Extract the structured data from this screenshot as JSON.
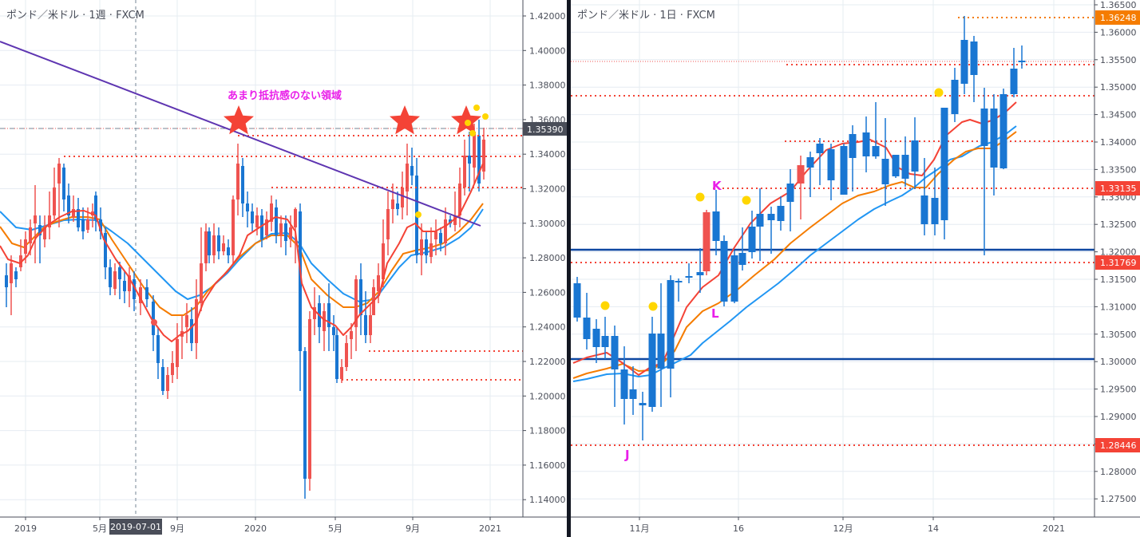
{
  "left": {
    "title": "ポンド／米ドル · 1週 · FXCM",
    "annotation": "あまり抵抗感のない領域",
    "price_axis": [
      "1.42000",
      "1.40000",
      "1.38000",
      "1.36000",
      "1.34000",
      "1.32000",
      "1.30000",
      "1.28000",
      "1.26000",
      "1.24000",
      "1.22000",
      "1.20000",
      "1.18000",
      "1.16000",
      "1.14000"
    ],
    "current_price": "1.35390",
    "time_axis": [
      {
        "label": "2019",
        "x": 32
      },
      {
        "label": "5月",
        "x": 125
      },
      {
        "label": "9月",
        "x": 222
      },
      {
        "label": "2020",
        "x": 320
      },
      {
        "label": "5月",
        "x": 420
      },
      {
        "label": "9月",
        "x": 517
      },
      {
        "label": "2021",
        "x": 614
      }
    ],
    "crosshair_date": "2019-07-01"
  },
  "right": {
    "title": "ポンド／米ドル · 1日 · FXCM",
    "price_axis": [
      "1.36500",
      "1.36000",
      "1.35500",
      "1.35000",
      "1.34500",
      "1.34000",
      "1.33500",
      "1.33000",
      "1.32500",
      "1.32000",
      "1.31500",
      "1.31000",
      "1.30500",
      "1.30000",
      "1.29500",
      "1.29000",
      "1.28500",
      "1.28000",
      "1.27500"
    ],
    "price_labels": [
      {
        "value": "1.36248",
        "color": "#f57c00"
      },
      {
        "value": "1.33135",
        "color": "#f44336"
      },
      {
        "value": "1.31769",
        "color": "#f44336"
      },
      {
        "value": "1.28446",
        "color": "#f44336"
      }
    ],
    "time_axis": [
      {
        "label": "11月",
        "x": 86
      },
      {
        "label": "16",
        "x": 210
      },
      {
        "label": "12月",
        "x": 341
      },
      {
        "label": "14",
        "x": 454
      },
      {
        "label": "2021",
        "x": 605
      }
    ],
    "point_labels": [
      "J",
      "K",
      "L"
    ]
  },
  "colors": {
    "up": "#ef5350",
    "down": "#1976d2",
    "ma_fast": "#f44336",
    "ma_mid": "#f57c00",
    "ma_slow": "#2196f3",
    "trendline": "#5e35b1",
    "level": "#f44336",
    "annotation": "#e91ee9",
    "star": "#f44336",
    "marker": "#ffd600",
    "hline": "#0d47a1"
  },
  "chart_data": [
    {
      "type": "candlestick",
      "title": "ポンド／米ドル · 1週 · FXCM",
      "xlabel": "",
      "ylabel": "",
      "x_ticks": [
        "2019",
        "5月",
        "9月",
        "2020",
        "5月",
        "9月",
        "2021"
      ],
      "ylim": [
        1.13,
        1.43
      ],
      "last_price": 1.3539,
      "horizontal_levels": [
        1.3539,
        1.3515,
        1.3385,
        1.3205,
        1.2255,
        1.2085
      ],
      "trendline": {
        "from": [
          0,
          1.4065
        ],
        "to": [
          592,
          1.2985
        ]
      },
      "annotation": "あまり抵抗感のない領域",
      "moving_averages": [
        "fast (red)",
        "mid (orange)",
        "slow (blue)"
      ]
    },
    {
      "type": "candlestick",
      "title": "ポンド／米ドル · 1日 · FXCM",
      "xlabel": "",
      "ylabel": "",
      "x_ticks": [
        "11月",
        "16",
        "12月",
        "14",
        "2021"
      ],
      "ylim": [
        1.2705,
        1.3655
      ],
      "horizontal_levels": [
        {
          "price": 1.36248,
          "style": "dotted",
          "color": "orange"
        },
        {
          "price": 1.3552,
          "style": "dotted",
          "color": "red"
        },
        {
          "price": 1.3542,
          "style": "dotted",
          "color": "red"
        },
        {
          "price": 1.3484,
          "style": "dotted",
          "color": "red"
        },
        {
          "price": 1.3401,
          "style": "dotted",
          "color": "red"
        },
        {
          "price": 1.33135,
          "style": "dotted",
          "color": "red"
        },
        {
          "price": 1.3203,
          "style": "solid",
          "color": "navy"
        },
        {
          "price": 1.31769,
          "style": "dotted",
          "color": "red"
        },
        {
          "price": 1.3,
          "style": "solid",
          "color": "navy"
        },
        {
          "price": 1.28446,
          "style": "dotted",
          "color": "red"
        }
      ],
      "labels": [
        "J",
        "K",
        "L"
      ]
    }
  ]
}
